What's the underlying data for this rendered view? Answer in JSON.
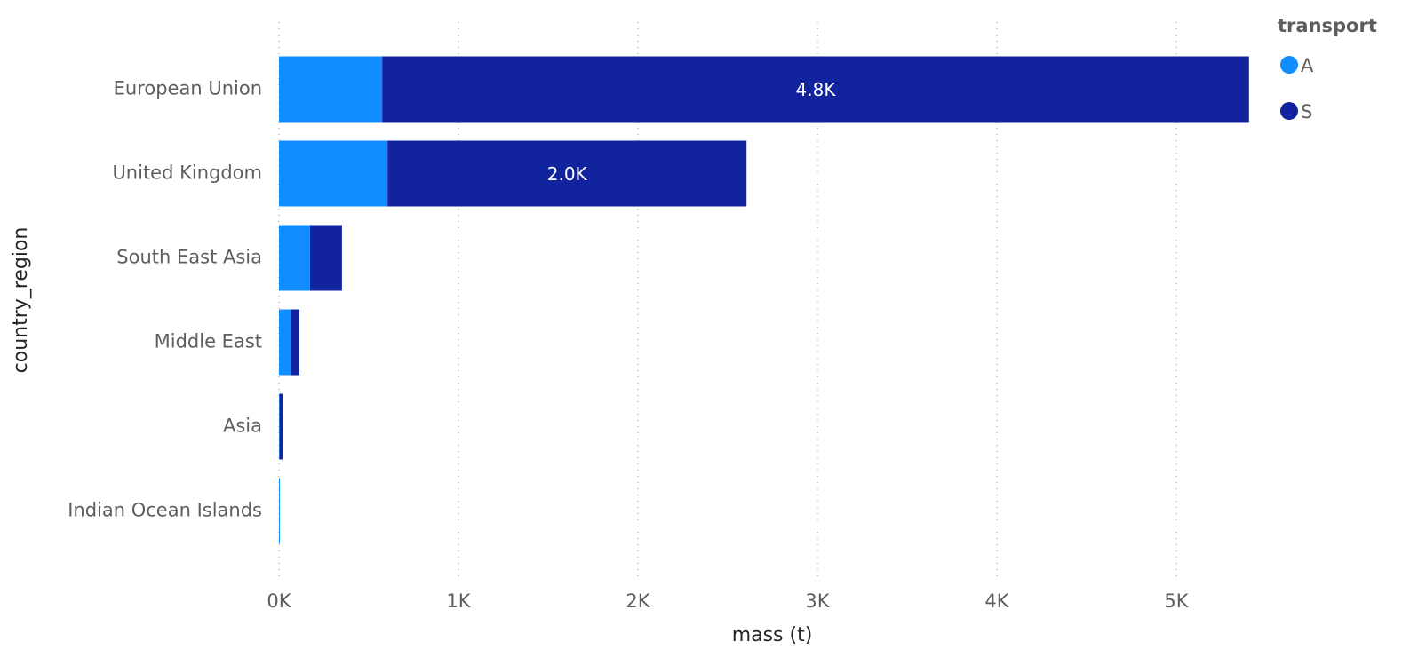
{
  "chart_data": {
    "type": "stacked-bar-horizontal",
    "x_label": "mass (t)",
    "y_label": "country_region",
    "legend_title": "transport",
    "categories": [
      "European Union",
      "United Kingdom",
      "South East Asia",
      "Middle East",
      "Asia",
      "Indian Ocean Islands"
    ],
    "series": [
      {
        "name": "A",
        "color": "#118dff",
        "values": [
          575,
          605,
          173,
          69,
          3,
          5
        ]
      },
      {
        "name": "S",
        "color": "#12239e",
        "values": [
          4830,
          2000,
          178,
          45,
          17,
          0
        ],
        "value_labels": [
          "4.8K",
          "2.0K",
          null,
          null,
          null,
          null
        ]
      }
    ],
    "xlim": [
      0,
      5500
    ],
    "xticks": [
      {
        "value": 0,
        "label": "0K"
      },
      {
        "value": 1000,
        "label": "1K"
      },
      {
        "value": 2000,
        "label": "2K"
      },
      {
        "value": 3000,
        "label": "3K"
      },
      {
        "value": 4000,
        "label": "4K"
      },
      {
        "value": 5000,
        "label": "5K"
      }
    ],
    "grid": true,
    "legend_position": "top-right"
  }
}
